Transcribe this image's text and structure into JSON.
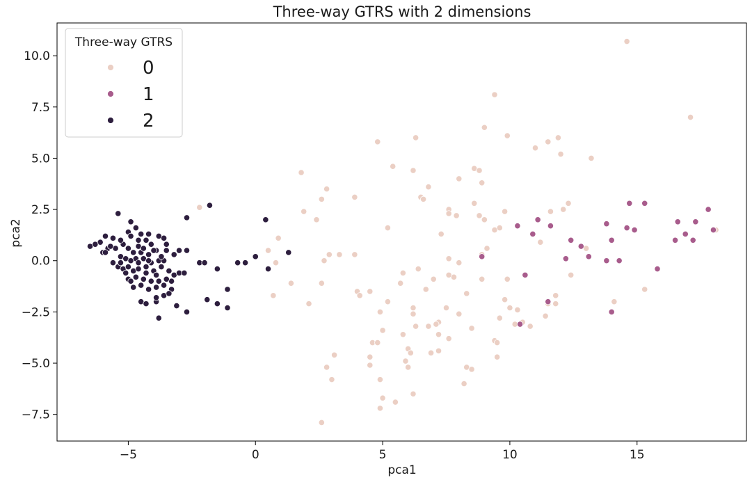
{
  "chart_data": {
    "type": "scatter",
    "title": "Three-way GTRS with 2 dimensions",
    "xlabel": "pca1",
    "ylabel": "pca2",
    "xlim": [
      -7.8,
      19.3
    ],
    "ylim": [
      -8.8,
      11.6
    ],
    "xticks": [
      -5,
      0,
      5,
      10,
      15
    ],
    "yticks": [
      -7.5,
      -5.0,
      -2.5,
      0.0,
      2.5,
      5.0,
      7.5,
      10.0
    ],
    "xtick_labels": [
      "−5",
      "0",
      "5",
      "10",
      "15"
    ],
    "ytick_labels": [
      "−7.5",
      "−5.0",
      "−2.5",
      "0.0",
      "2.5",
      "5.0",
      "7.5",
      "10.0"
    ],
    "grid": false,
    "legend": {
      "title": "Three-way GTRS",
      "placement": "top-left",
      "entries": [
        "0",
        "1",
        "2"
      ]
    },
    "colors": {
      "0": "#ebcfc4",
      "1": "#a85c8c",
      "2": "#2d1e3e"
    },
    "series": [
      {
        "name": "0",
        "points": [
          [
            14.6,
            10.7
          ],
          [
            9.4,
            8.1
          ],
          [
            17.1,
            7.0
          ],
          [
            9.0,
            6.5
          ],
          [
            6.3,
            6.0
          ],
          [
            4.8,
            5.8
          ],
          [
            9.9,
            6.1
          ],
          [
            11.5,
            5.8
          ],
          [
            11.9,
            6.0
          ],
          [
            11.0,
            5.5
          ],
          [
            12.0,
            5.2
          ],
          [
            13.2,
            5.0
          ],
          [
            5.4,
            4.6
          ],
          [
            6.2,
            4.4
          ],
          [
            1.8,
            4.3
          ],
          [
            8.6,
            4.5
          ],
          [
            8.8,
            4.4
          ],
          [
            8.0,
            4.0
          ],
          [
            6.8,
            3.6
          ],
          [
            8.9,
            3.8
          ],
          [
            2.8,
            3.5
          ],
          [
            3.9,
            3.1
          ],
          [
            6.5,
            3.1
          ],
          [
            6.6,
            3.0
          ],
          [
            2.6,
            3.0
          ],
          [
            7.6,
            2.5
          ],
          [
            8.6,
            2.8
          ],
          [
            9.8,
            2.4
          ],
          [
            12.3,
            2.8
          ],
          [
            11.6,
            2.4
          ],
          [
            12.1,
            2.5
          ],
          [
            1.9,
            2.4
          ],
          [
            2.4,
            2.0
          ],
          [
            7.6,
            2.3
          ],
          [
            7.9,
            2.2
          ],
          [
            8.8,
            2.2
          ],
          [
            9.0,
            2.0
          ],
          [
            9.4,
            1.5
          ],
          [
            9.6,
            1.6
          ],
          [
            5.2,
            1.6
          ],
          [
            7.3,
            1.3
          ],
          [
            11.2,
            0.9
          ],
          [
            0.9,
            1.1
          ],
          [
            13.0,
            0.6
          ],
          [
            18.1,
            1.5
          ],
          [
            2.9,
            0.3
          ],
          [
            3.3,
            0.3
          ],
          [
            3.9,
            0.3
          ],
          [
            8.9,
            0.3
          ],
          [
            0.5,
            0.5
          ],
          [
            0.8,
            -0.1
          ],
          [
            2.7,
            0.0
          ],
          [
            8.0,
            -0.1
          ],
          [
            7.6,
            0.1
          ],
          [
            9.1,
            0.6
          ],
          [
            5.8,
            -0.6
          ],
          [
            6.4,
            -0.4
          ],
          [
            7.6,
            -0.7
          ],
          [
            7.8,
            -0.8
          ],
          [
            1.4,
            -1.1
          ],
          [
            2.6,
            -1.1
          ],
          [
            5.7,
            -1.1
          ],
          [
            6.7,
            -1.4
          ],
          [
            9.9,
            -0.9
          ],
          [
            12.4,
            -0.7
          ],
          [
            7.0,
            -0.9
          ],
          [
            8.9,
            -0.9
          ],
          [
            0.7,
            -1.7
          ],
          [
            4.0,
            -1.5
          ],
          [
            4.1,
            -1.7
          ],
          [
            4.5,
            -1.5
          ],
          [
            8.3,
            -1.6
          ],
          [
            11.8,
            -1.7
          ],
          [
            11.8,
            -2.1
          ],
          [
            9.8,
            -1.9
          ],
          [
            10.0,
            -2.3
          ],
          [
            10.3,
            -2.4
          ],
          [
            2.1,
            -2.1
          ],
          [
            5.2,
            -2.0
          ],
          [
            4.9,
            -2.5
          ],
          [
            6.2,
            -2.3
          ],
          [
            6.2,
            -2.6
          ],
          [
            7.5,
            -2.3
          ],
          [
            8.0,
            -2.6
          ],
          [
            11.5,
            -2.1
          ],
          [
            11.4,
            -2.7
          ],
          [
            14.1,
            -2.0
          ],
          [
            15.3,
            -1.4
          ],
          [
            9.6,
            -2.8
          ],
          [
            10.2,
            -3.1
          ],
          [
            10.5,
            -3.0
          ],
          [
            10.8,
            -3.2
          ],
          [
            5.0,
            -3.4
          ],
          [
            6.3,
            -3.2
          ],
          [
            6.8,
            -3.2
          ],
          [
            7.2,
            -3.0
          ],
          [
            7.1,
            -3.1
          ],
          [
            8.5,
            -3.3
          ],
          [
            5.8,
            -3.6
          ],
          [
            7.2,
            -3.6
          ],
          [
            7.6,
            -3.8
          ],
          [
            9.4,
            -3.9
          ],
          [
            9.5,
            -4.0
          ],
          [
            4.6,
            -4.0
          ],
          [
            4.8,
            -4.0
          ],
          [
            6.0,
            -4.3
          ],
          [
            7.2,
            -4.4
          ],
          [
            3.1,
            -4.6
          ],
          [
            6.1,
            -4.5
          ],
          [
            6.9,
            -4.5
          ],
          [
            9.5,
            -4.7
          ],
          [
            4.5,
            -4.7
          ],
          [
            5.9,
            -4.9
          ],
          [
            2.8,
            -5.2
          ],
          [
            4.5,
            -5.1
          ],
          [
            6.0,
            -5.2
          ],
          [
            8.3,
            -5.2
          ],
          [
            8.5,
            -5.3
          ],
          [
            3.0,
            -5.8
          ],
          [
            4.9,
            -5.8
          ],
          [
            8.2,
            -6.0
          ],
          [
            6.2,
            -6.5
          ],
          [
            5.0,
            -6.7
          ],
          [
            5.5,
            -6.9
          ],
          [
            4.9,
            -7.2
          ],
          [
            2.6,
            -7.9
          ],
          [
            -2.2,
            2.6
          ]
        ]
      },
      {
        "name": "1",
        "points": [
          [
            14.7,
            2.8
          ],
          [
            15.3,
            2.8
          ],
          [
            17.8,
            2.5
          ],
          [
            10.3,
            1.7
          ],
          [
            11.1,
            2.0
          ],
          [
            11.6,
            1.7
          ],
          [
            13.8,
            1.8
          ],
          [
            14.6,
            1.6
          ],
          [
            14.9,
            1.5
          ],
          [
            16.6,
            1.9
          ],
          [
            17.3,
            1.9
          ],
          [
            18.0,
            1.5
          ],
          [
            10.9,
            1.3
          ],
          [
            12.4,
            1.0
          ],
          [
            14.0,
            1.0
          ],
          [
            16.5,
            1.0
          ],
          [
            16.9,
            1.3
          ],
          [
            17.2,
            1.0
          ],
          [
            12.8,
            0.7
          ],
          [
            12.2,
            0.1
          ],
          [
            13.1,
            0.2
          ],
          [
            13.8,
            0.0
          ],
          [
            14.3,
            0.0
          ],
          [
            8.9,
            0.2
          ],
          [
            10.6,
            -0.7
          ],
          [
            15.8,
            -0.4
          ],
          [
            11.5,
            -2.0
          ],
          [
            14.0,
            -2.5
          ],
          [
            10.4,
            -3.1
          ]
        ]
      },
      {
        "name": "2",
        "points": [
          [
            -5.4,
            2.3
          ],
          [
            -4.9,
            1.9
          ],
          [
            -4.5,
            1.3
          ],
          [
            -4.2,
            1.3
          ],
          [
            -3.8,
            1.2
          ],
          [
            -3.6,
            1.1
          ],
          [
            -5.6,
            1.1
          ],
          [
            -5.9,
            1.2
          ],
          [
            -6.1,
            0.9
          ],
          [
            -5.0,
            1.4
          ],
          [
            -4.6,
            1.0
          ],
          [
            -4.3,
            1.0
          ],
          [
            -4.1,
            0.8
          ],
          [
            -3.5,
            0.8
          ],
          [
            -5.2,
            0.8
          ],
          [
            -5.5,
            0.6
          ],
          [
            -5.8,
            0.6
          ],
          [
            -6.0,
            0.4
          ],
          [
            -6.5,
            0.7
          ],
          [
            -6.3,
            0.8
          ],
          [
            -5.0,
            0.6
          ],
          [
            -4.8,
            0.4
          ],
          [
            -4.5,
            0.4
          ],
          [
            -4.2,
            0.3
          ],
          [
            -3.9,
            0.5
          ],
          [
            -3.5,
            0.5
          ],
          [
            -3.2,
            0.3
          ],
          [
            -3.0,
            0.5
          ],
          [
            -2.7,
            0.5
          ],
          [
            -5.3,
            0.2
          ],
          [
            -5.1,
            0.1
          ],
          [
            -4.9,
            0.0
          ],
          [
            -4.7,
            0.1
          ],
          [
            -4.4,
            0.1
          ],
          [
            -4.1,
            -0.1
          ],
          [
            -3.8,
            0.0
          ],
          [
            -3.6,
            0.0
          ],
          [
            -5.6,
            -0.1
          ],
          [
            -5.4,
            -0.3
          ],
          [
            -5.2,
            -0.4
          ],
          [
            -5.0,
            -0.3
          ],
          [
            -4.8,
            -0.5
          ],
          [
            -4.6,
            -0.4
          ],
          [
            -4.3,
            -0.6
          ],
          [
            -4.0,
            -0.5
          ],
          [
            -3.7,
            -0.3
          ],
          [
            -3.4,
            -0.5
          ],
          [
            -3.2,
            -0.7
          ],
          [
            -3.0,
            -0.6
          ],
          [
            -2.8,
            -0.6
          ],
          [
            -5.0,
            -0.9
          ],
          [
            -4.7,
            -0.8
          ],
          [
            -4.4,
            -0.9
          ],
          [
            -4.1,
            -1.0
          ],
          [
            -3.8,
            -1.0
          ],
          [
            -3.6,
            -1.2
          ],
          [
            -3.3,
            -1.0
          ],
          [
            -4.8,
            -1.3
          ],
          [
            -4.5,
            -1.2
          ],
          [
            -4.2,
            -1.4
          ],
          [
            -3.9,
            -1.3
          ],
          [
            -3.6,
            -1.7
          ],
          [
            -3.3,
            -1.4
          ],
          [
            -4.5,
            -2.0
          ],
          [
            -4.3,
            -2.1
          ],
          [
            -3.9,
            -2.0
          ],
          [
            -3.8,
            -2.8
          ],
          [
            -3.1,
            -2.2
          ],
          [
            -2.7,
            -2.5
          ],
          [
            -2.7,
            2.1
          ],
          [
            -1.8,
            2.7
          ],
          [
            -2.2,
            -0.1
          ],
          [
            -2.0,
            -0.1
          ],
          [
            -1.5,
            -0.4
          ],
          [
            -0.7,
            -0.1
          ],
          [
            -0.4,
            -0.1
          ],
          [
            0.0,
            0.2
          ],
          [
            0.5,
            -0.4
          ],
          [
            0.4,
            2.0
          ],
          [
            1.3,
            0.4
          ],
          [
            -1.9,
            -1.9
          ],
          [
            -1.5,
            -2.1
          ],
          [
            -1.1,
            -1.4
          ],
          [
            -1.1,
            -2.3
          ],
          [
            -5.9,
            0.4
          ],
          [
            -5.7,
            0.7
          ],
          [
            -4.6,
            0.7
          ],
          [
            -4.4,
            0.6
          ],
          [
            -5.3,
            1.0
          ],
          [
            -4.9,
            1.2
          ],
          [
            -4.0,
            0.5
          ],
          [
            -3.7,
            0.2
          ],
          [
            -4.6,
            -0.1
          ],
          [
            -4.3,
            -0.3
          ],
          [
            -3.9,
            -0.7
          ],
          [
            -5.1,
            -0.6
          ],
          [
            -4.9,
            -1.0
          ],
          [
            -3.5,
            -0.9
          ],
          [
            -3.4,
            -1.6
          ],
          [
            -4.7,
            1.6
          ],
          [
            -5.3,
            -0.1
          ],
          [
            -4.2,
            0.0
          ],
          [
            -3.9,
            -1.8
          ]
        ]
      }
    ]
  }
}
